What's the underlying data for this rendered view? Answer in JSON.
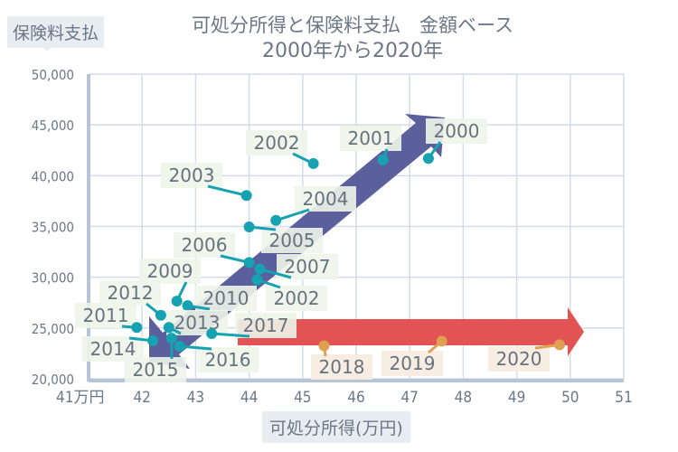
{
  "chart_data": {
    "type": "scatter",
    "title": "可処分所得と保険料支払　金額ベース",
    "subtitle": "2000年から2020年",
    "xlabel": "可処分所得(万円)",
    "ylabel": "保険料支払",
    "x_unit_label": "41万円",
    "xlim": [
      41,
      51
    ],
    "ylim": [
      20000,
      50000
    ],
    "x_ticks": [
      "42",
      "43",
      "44",
      "45",
      "46",
      "47",
      "48",
      "49",
      "50",
      "51"
    ],
    "y_ticks": [
      "20,000",
      "25,000",
      "30,000",
      "35,000",
      "40,000",
      "45,000",
      "50,000"
    ],
    "grid": true,
    "colors": {
      "points_2000_2017": "#16a2b0",
      "points_2018_2020": "#e0a052",
      "diagonal_arrow": "#5b5f9c",
      "horizontal_arrow": "#e25454"
    },
    "points": [
      {
        "label": "2000",
        "x": 47.35,
        "y": 41700
      },
      {
        "label": "2001",
        "x": 46.5,
        "y": 41550
      },
      {
        "label": "2002",
        "x": 45.2,
        "y": 41200
      },
      {
        "label": "2003",
        "x": 43.95,
        "y": 38050
      },
      {
        "label": "2004",
        "x": 44.5,
        "y": 35600
      },
      {
        "label": "2005",
        "x": 44.0,
        "y": 34950
      },
      {
        "label": "2006",
        "x": 44.0,
        "y": 31450
      },
      {
        "label": "2007",
        "x": 44.2,
        "y": 30800
      },
      {
        "label": "2002",
        "x": 44.15,
        "y": 29750
      },
      {
        "label": "2009",
        "x": 42.65,
        "y": 27650
      },
      {
        "label": "2010",
        "x": 42.85,
        "y": 27200
      },
      {
        "label": "2011",
        "x": 41.9,
        "y": 25050
      },
      {
        "label": "2012",
        "x": 42.35,
        "y": 26250
      },
      {
        "label": "2013",
        "x": 42.5,
        "y": 25050
      },
      {
        "label": "2014",
        "x": 42.2,
        "y": 23750
      },
      {
        "label": "2015",
        "x": 42.55,
        "y": 24000
      },
      {
        "label": "2016",
        "x": 42.7,
        "y": 23200
      },
      {
        "label": "2017",
        "x": 43.3,
        "y": 24450
      },
      {
        "label": "2018",
        "x": 45.4,
        "y": 23250
      },
      {
        "label": "2019",
        "x": 47.6,
        "y": 23700
      },
      {
        "label": "2020",
        "x": 49.8,
        "y": 23350
      }
    ]
  }
}
